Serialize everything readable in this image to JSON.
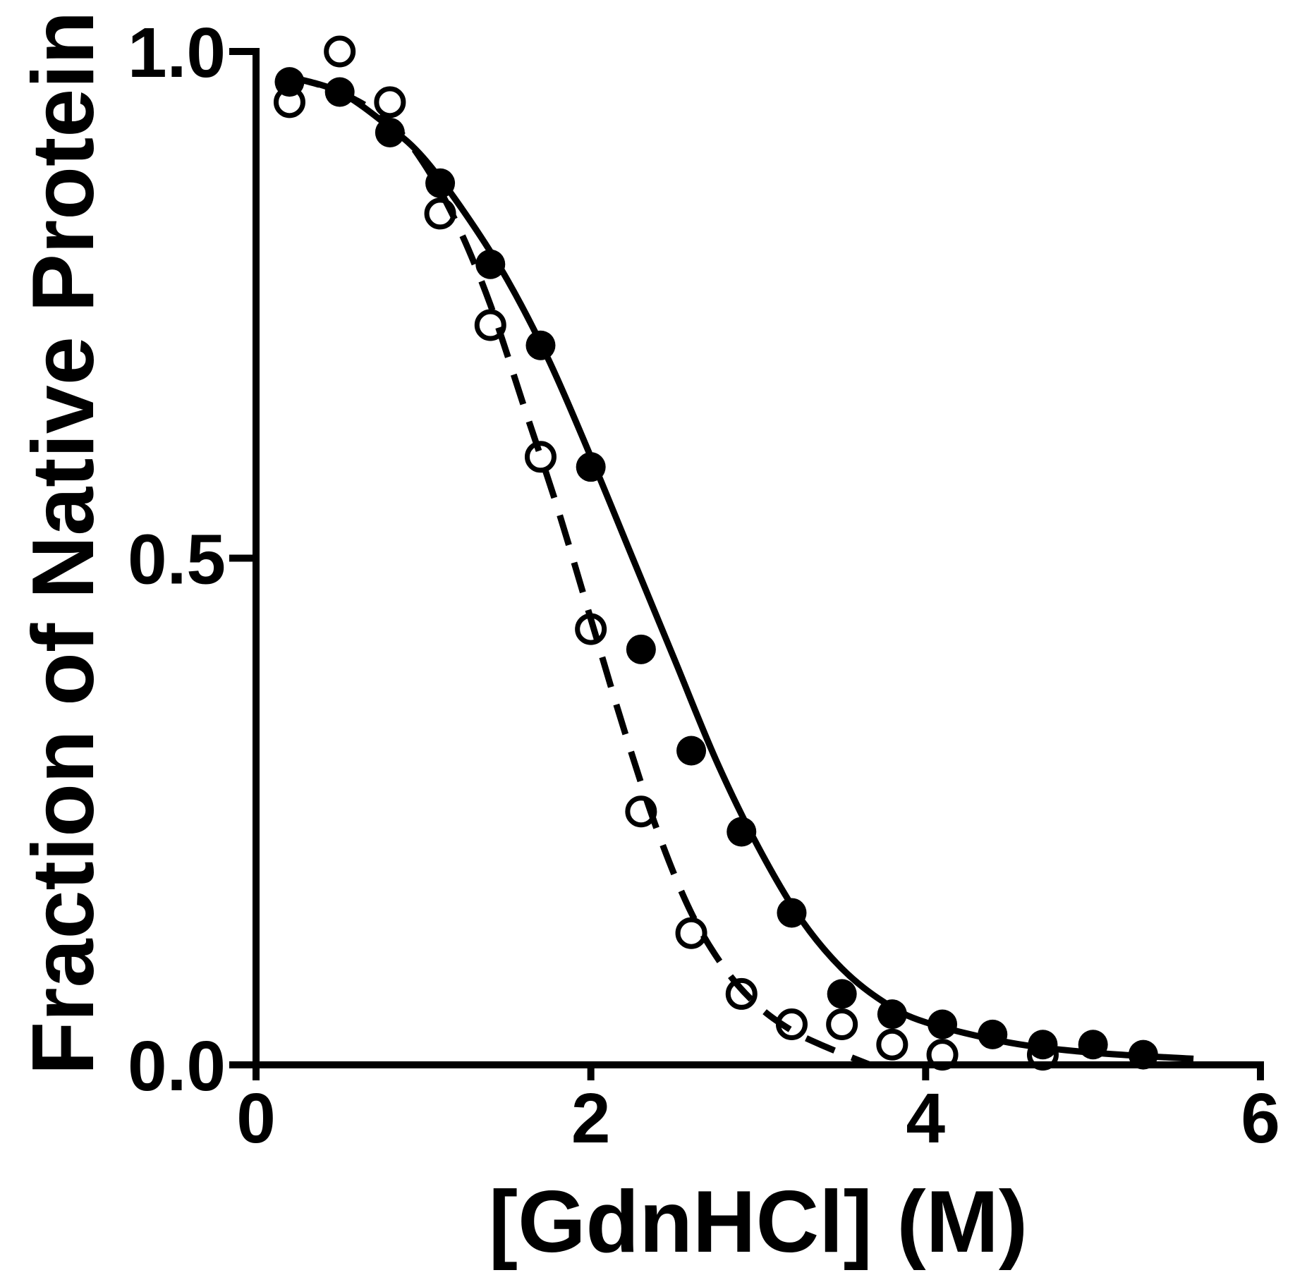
{
  "chart_data": {
    "type": "scatter",
    "title": "",
    "xlabel": "[GdnHCl] (M)",
    "ylabel": "Fraction of Native Protein",
    "xlim": [
      0,
      6
    ],
    "ylim": [
      0,
      1.0
    ],
    "x_ticks": [
      0,
      2,
      4,
      6
    ],
    "x_tick_labels": [
      "0",
      "2",
      "4",
      "6"
    ],
    "y_ticks": [
      0,
      0.5,
      1.0
    ],
    "y_tick_labels": [
      "0.0",
      "0.5",
      "1.0"
    ],
    "grid": false,
    "legend": null,
    "series": [
      {
        "name": "filled-circles",
        "marker": "filled-circle",
        "line_style": "solid",
        "color": "#000000",
        "x": [
          0.2,
          0.5,
          0.8,
          1.1,
          1.4,
          1.7,
          2.0,
          2.3,
          2.6,
          2.9,
          3.2,
          3.5,
          3.8,
          4.1,
          4.4,
          4.7,
          5.0,
          5.3
        ],
        "y": [
          0.97,
          0.96,
          0.92,
          0.87,
          0.79,
          0.71,
          0.59,
          0.41,
          0.31,
          0.23,
          0.15,
          0.07,
          0.05,
          0.04,
          0.03,
          0.02,
          0.02,
          0.01
        ],
        "fit_curve": {
          "x": [
            0.2,
            0.5,
            0.8,
            1.0,
            1.25,
            1.5,
            1.75,
            2.0,
            2.25,
            2.5,
            2.75,
            3.0,
            3.25,
            3.5,
            3.75,
            4.0,
            4.5,
            5.0,
            5.6
          ],
          "y": [
            0.975,
            0.96,
            0.925,
            0.895,
            0.84,
            0.775,
            0.695,
            0.6,
            0.5,
            0.4,
            0.3,
            0.215,
            0.145,
            0.095,
            0.062,
            0.042,
            0.022,
            0.012,
            0.006
          ]
        }
      },
      {
        "name": "open-circles",
        "marker": "open-circle",
        "line_style": "dashed",
        "color": "#000000",
        "x": [
          0.2,
          0.5,
          0.8,
          1.1,
          1.4,
          1.7,
          2.0,
          2.3,
          2.6,
          2.9,
          3.2,
          3.5,
          3.8,
          4.1,
          4.7
        ],
        "y": [
          0.95,
          1.0,
          0.95,
          0.84,
          0.73,
          0.6,
          0.43,
          0.25,
          0.13,
          0.07,
          0.04,
          0.04,
          0.02,
          0.01,
          0.01
        ],
        "fit_curve": {
          "x": [
            0.2,
            0.5,
            0.8,
            1.0,
            1.2,
            1.4,
            1.6,
            1.8,
            2.0,
            2.2,
            2.4,
            2.6,
            2.8,
            3.0,
            3.2,
            3.4,
            3.67
          ],
          "y": [
            0.975,
            0.96,
            0.93,
            0.89,
            0.83,
            0.75,
            0.65,
            0.55,
            0.44,
            0.33,
            0.23,
            0.15,
            0.095,
            0.058,
            0.034,
            0.018,
            0.0
          ]
        }
      }
    ]
  },
  "axes": {
    "x_title": "[GdnHCl] (M)",
    "y_title": "Fraction of Native Protein"
  }
}
